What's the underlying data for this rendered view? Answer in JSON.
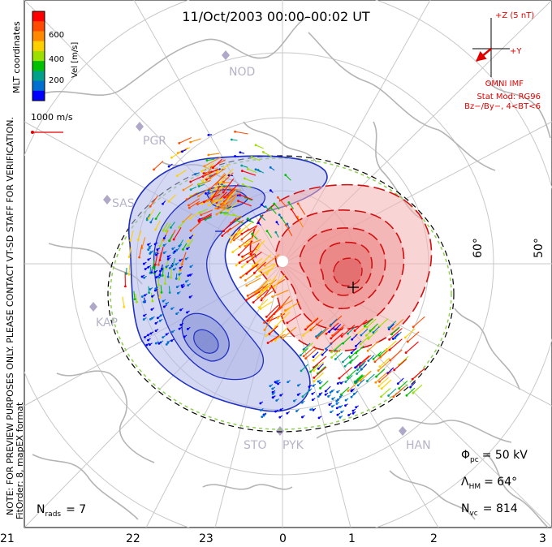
{
  "title": "11/Oct/2003 00:00–00:02 UT",
  "colorbar": {
    "ticks": [
      "600",
      "400",
      "200"
    ],
    "label": "Vel [m/s]",
    "colors": [
      "#ff0000",
      "#ff4a00",
      "#ff8a00",
      "#ffd000",
      "#9be000",
      "#00c000",
      "#00a08a",
      "#0070d0",
      "#0000ff"
    ]
  },
  "coords_label": "MLT coordinates",
  "vector_scale": {
    "label": "1000 m/s",
    "color": "#e00000"
  },
  "preview_note": "NOTE: FOR PREVIEW PURPOSES ONLY. PLEASE CONTACT VT-SD STAFF FOR VERIFICATION.",
  "fit_order": "FitOrder: 8, mapEX format",
  "imf": {
    "z_label": "+Z (5 nT)",
    "y_label": "+Y",
    "source": "OMNI IMF",
    "model": "Stat Mod: RG96",
    "model_params": "Bz−/By−, 4<BT<6",
    "color": "#e00000"
  },
  "stations": [
    "NOD",
    "PGR",
    "SAS",
    "KAP",
    "STO",
    "PYK",
    "HAN"
  ],
  "lat_labels": [
    "60°",
    "50°"
  ],
  "mlt_labels": [
    "21",
    "22",
    "23",
    "0",
    "1",
    "2",
    "3"
  ],
  "stats": {
    "phi_pc": "Φpc = 50 kV",
    "lambda_hm": "ΛHM = 64°",
    "n_vc": "Nvc = 814",
    "n_rads": "Nrads = 7"
  },
  "colors": {
    "grid": "#c8c8c8",
    "coast": "#b4b4b4",
    "station": "#b0a8c8",
    "neg_cell": "#2030c0",
    "pos_cell": "#d01010"
  }
}
